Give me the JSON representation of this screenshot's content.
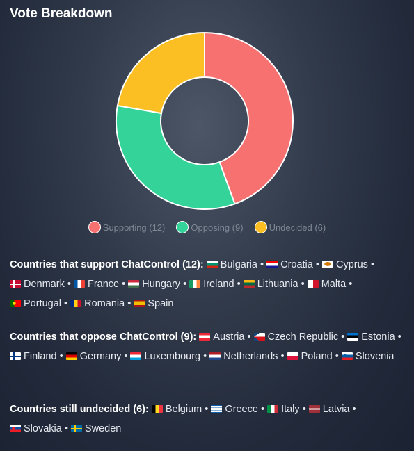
{
  "title": "Vote Breakdown",
  "chart_data": {
    "type": "pie",
    "categories": [
      "Supporting",
      "Opposing",
      "Undecided"
    ],
    "values": [
      12,
      9,
      6
    ],
    "colors": [
      "#f87171",
      "#34d399",
      "#fbbf24"
    ],
    "legend": [
      "Supporting (12)",
      "Opposing (9)",
      "Undecided (6)"
    ],
    "legend_position": "bottom",
    "donut": true
  },
  "sections": [
    {
      "heading": "Countries that support ChatControl (12):",
      "countries": [
        {
          "name": "Bulgaria",
          "flag": "bulgaria-flag-icon"
        },
        {
          "name": "Croatia",
          "flag": "croatia-flag-icon"
        },
        {
          "name": "Cyprus",
          "flag": "cyprus-flag-icon"
        },
        {
          "name": "Denmark",
          "flag": "denmark-flag-icon"
        },
        {
          "name": "France",
          "flag": "france-flag-icon"
        },
        {
          "name": "Hungary",
          "flag": "hungary-flag-icon"
        },
        {
          "name": "Ireland",
          "flag": "ireland-flag-icon"
        },
        {
          "name": "Lithuania",
          "flag": "lithuania-flag-icon"
        },
        {
          "name": "Malta",
          "flag": "malta-flag-icon"
        },
        {
          "name": "Portugal",
          "flag": "portugal-flag-icon"
        },
        {
          "name": "Romania",
          "flag": "romania-flag-icon"
        },
        {
          "name": "Spain",
          "flag": "spain-flag-icon"
        }
      ]
    },
    {
      "heading": "Countries that oppose ChatControl (9):",
      "countries": [
        {
          "name": "Austria",
          "flag": "austria-flag-icon"
        },
        {
          "name": "Czech Republic",
          "flag": "czech-republic-flag-icon"
        },
        {
          "name": "Estonia",
          "flag": "estonia-flag-icon"
        },
        {
          "name": "Finland",
          "flag": "finland-flag-icon"
        },
        {
          "name": "Germany",
          "flag": "germany-flag-icon"
        },
        {
          "name": "Luxembourg",
          "flag": "luxembourg-flag-icon"
        },
        {
          "name": "Netherlands",
          "flag": "netherlands-flag-icon"
        },
        {
          "name": "Poland",
          "flag": "poland-flag-icon"
        },
        {
          "name": "Slovenia",
          "flag": "slovenia-flag-icon"
        }
      ]
    },
    {
      "heading": "Countries still undecided (6):",
      "countries": [
        {
          "name": "Belgium",
          "flag": "belgium-flag-icon"
        },
        {
          "name": "Greece",
          "flag": "greece-flag-icon"
        },
        {
          "name": "Italy",
          "flag": "italy-flag-icon"
        },
        {
          "name": "Latvia",
          "flag": "latvia-flag-icon"
        },
        {
          "name": "Slovakia",
          "flag": "slovakia-flag-icon"
        },
        {
          "name": "Sweden",
          "flag": "sweden-flag-icon"
        }
      ]
    }
  ]
}
